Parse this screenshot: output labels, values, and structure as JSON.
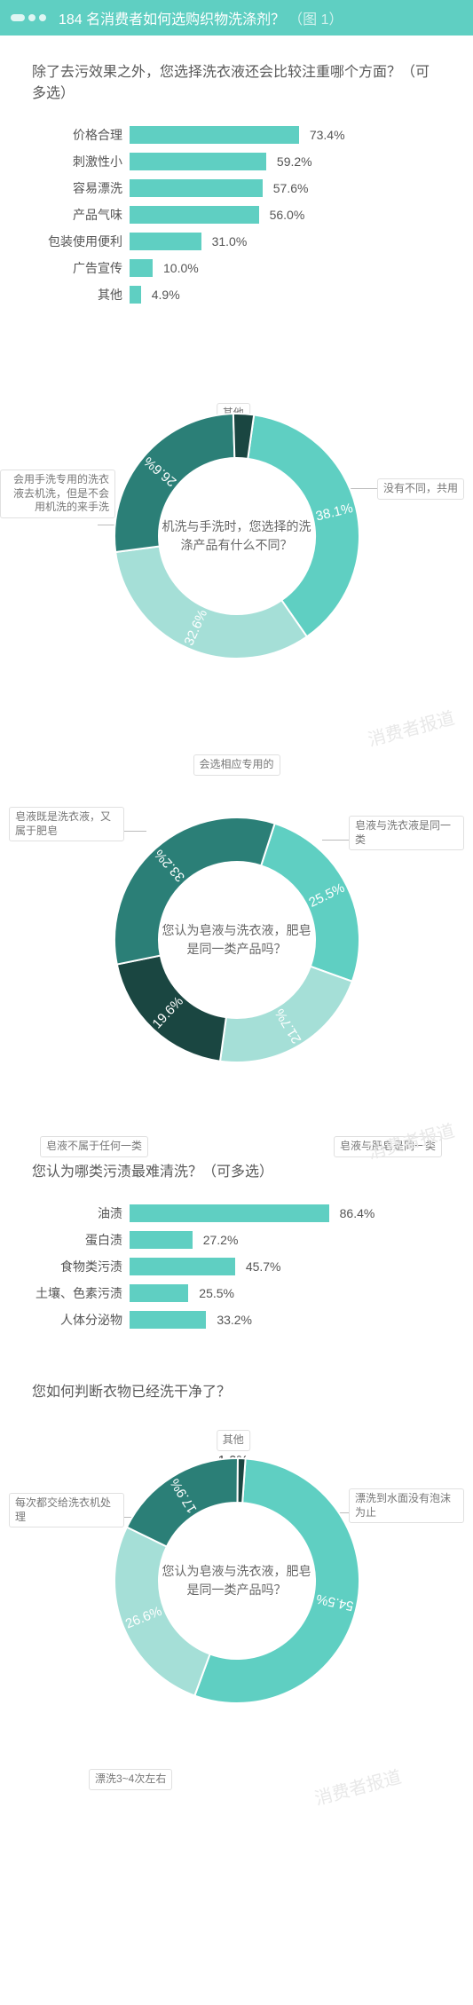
{
  "header": {
    "title": "184 名消费者如何选购织物洗涤剂？",
    "tail": "（图 1）"
  },
  "watermark": "消费者报道",
  "bar1": {
    "question": "除了去污效果之外，您选择洗衣液还会比较注重哪个方面？（可多选）",
    "items": [
      {
        "label": "价格合理",
        "value": 73.4
      },
      {
        "label": "刺激性小",
        "value": 59.2
      },
      {
        "label": "容易漂洗",
        "value": 57.6
      },
      {
        "label": "产品气味",
        "value": 56.0
      },
      {
        "label": "包装使用便利",
        "value": 31.0
      },
      {
        "label": "广告宣传",
        "value": 10.0
      },
      {
        "label": "其他",
        "value": 4.9
      }
    ],
    "bar_color": "#5fcfc2",
    "label_color": "#555555",
    "fontsize": 14,
    "max": 100
  },
  "donut1": {
    "center_text": "机洗与手洗时，您选择的洗涤产品有什么不同？",
    "top_label": "其他",
    "top_pct": "2.7%",
    "slices": [
      {
        "label": "没有不同，共用",
        "value": 38.1,
        "color": "#5fcfc2"
      },
      {
        "label": "会选相应专用的",
        "value": 32.6,
        "color": "#a5dfd7"
      },
      {
        "label": "会用手洗专用的洗衣液去机洗，但是不会用机洗的来手洗",
        "value": 26.6,
        "color": "#2b7f77"
      },
      {
        "label": "其他",
        "value": 2.7,
        "color": "#1a4641"
      }
    ],
    "inner_r": 88,
    "outer_r": 138,
    "pct_fontsize": 15,
    "pct_color": "#ffffff",
    "label_fontsize": 12
  },
  "donut2": {
    "center_text": "您认为皂液与洗衣液，肥皂是同一类产品吗？",
    "slices": [
      {
        "label": "皂液与洗衣液是同一类",
        "value": 25.5,
        "color": "#5fcfc2"
      },
      {
        "label": "皂液与肥皂是同一类",
        "value": 21.7,
        "color": "#a5dfd7"
      },
      {
        "label": "皂液不属于任何一类",
        "value": 19.6,
        "color": "#1a4641"
      },
      {
        "label": "皂液既是洗衣液，又属于肥皂",
        "value": 33.2,
        "color": "#2b7f77"
      }
    ],
    "inner_r": 88,
    "outer_r": 138,
    "pct_fontsize": 15,
    "pct_color": "#ffffff",
    "label_fontsize": 12
  },
  "bar2": {
    "question": "您认为哪类污渍最难清洗？（可多选）",
    "items": [
      {
        "label": "油渍",
        "value": 86.4
      },
      {
        "label": "蛋白渍",
        "value": 27.2
      },
      {
        "label": "食物类污渍",
        "value": 45.7
      },
      {
        "label": "土壤、色素污渍",
        "value": 25.5
      },
      {
        "label": "人体分泌物",
        "value": 33.2
      }
    ],
    "bar_color": "#5fcfc2",
    "max": 100
  },
  "donut3": {
    "question": "您如何判断衣物已经洗干净了？",
    "center_text": "您认为皂液与洗衣液，肥皂是同一类产品吗？",
    "top_label": "其他",
    "top_pct": "1.0%",
    "slices": [
      {
        "label": "漂洗到水面没有泡沫为止",
        "value": 54.5,
        "color": "#5fcfc2"
      },
      {
        "label": "漂洗3~4次左右",
        "value": 26.6,
        "color": "#a5dfd7"
      },
      {
        "label": "每次都交给洗衣机处理",
        "value": 17.9,
        "color": "#2b7f77"
      },
      {
        "label": "其他",
        "value": 1.0,
        "color": "#1a4641"
      }
    ],
    "inner_r": 88,
    "outer_r": 138
  }
}
